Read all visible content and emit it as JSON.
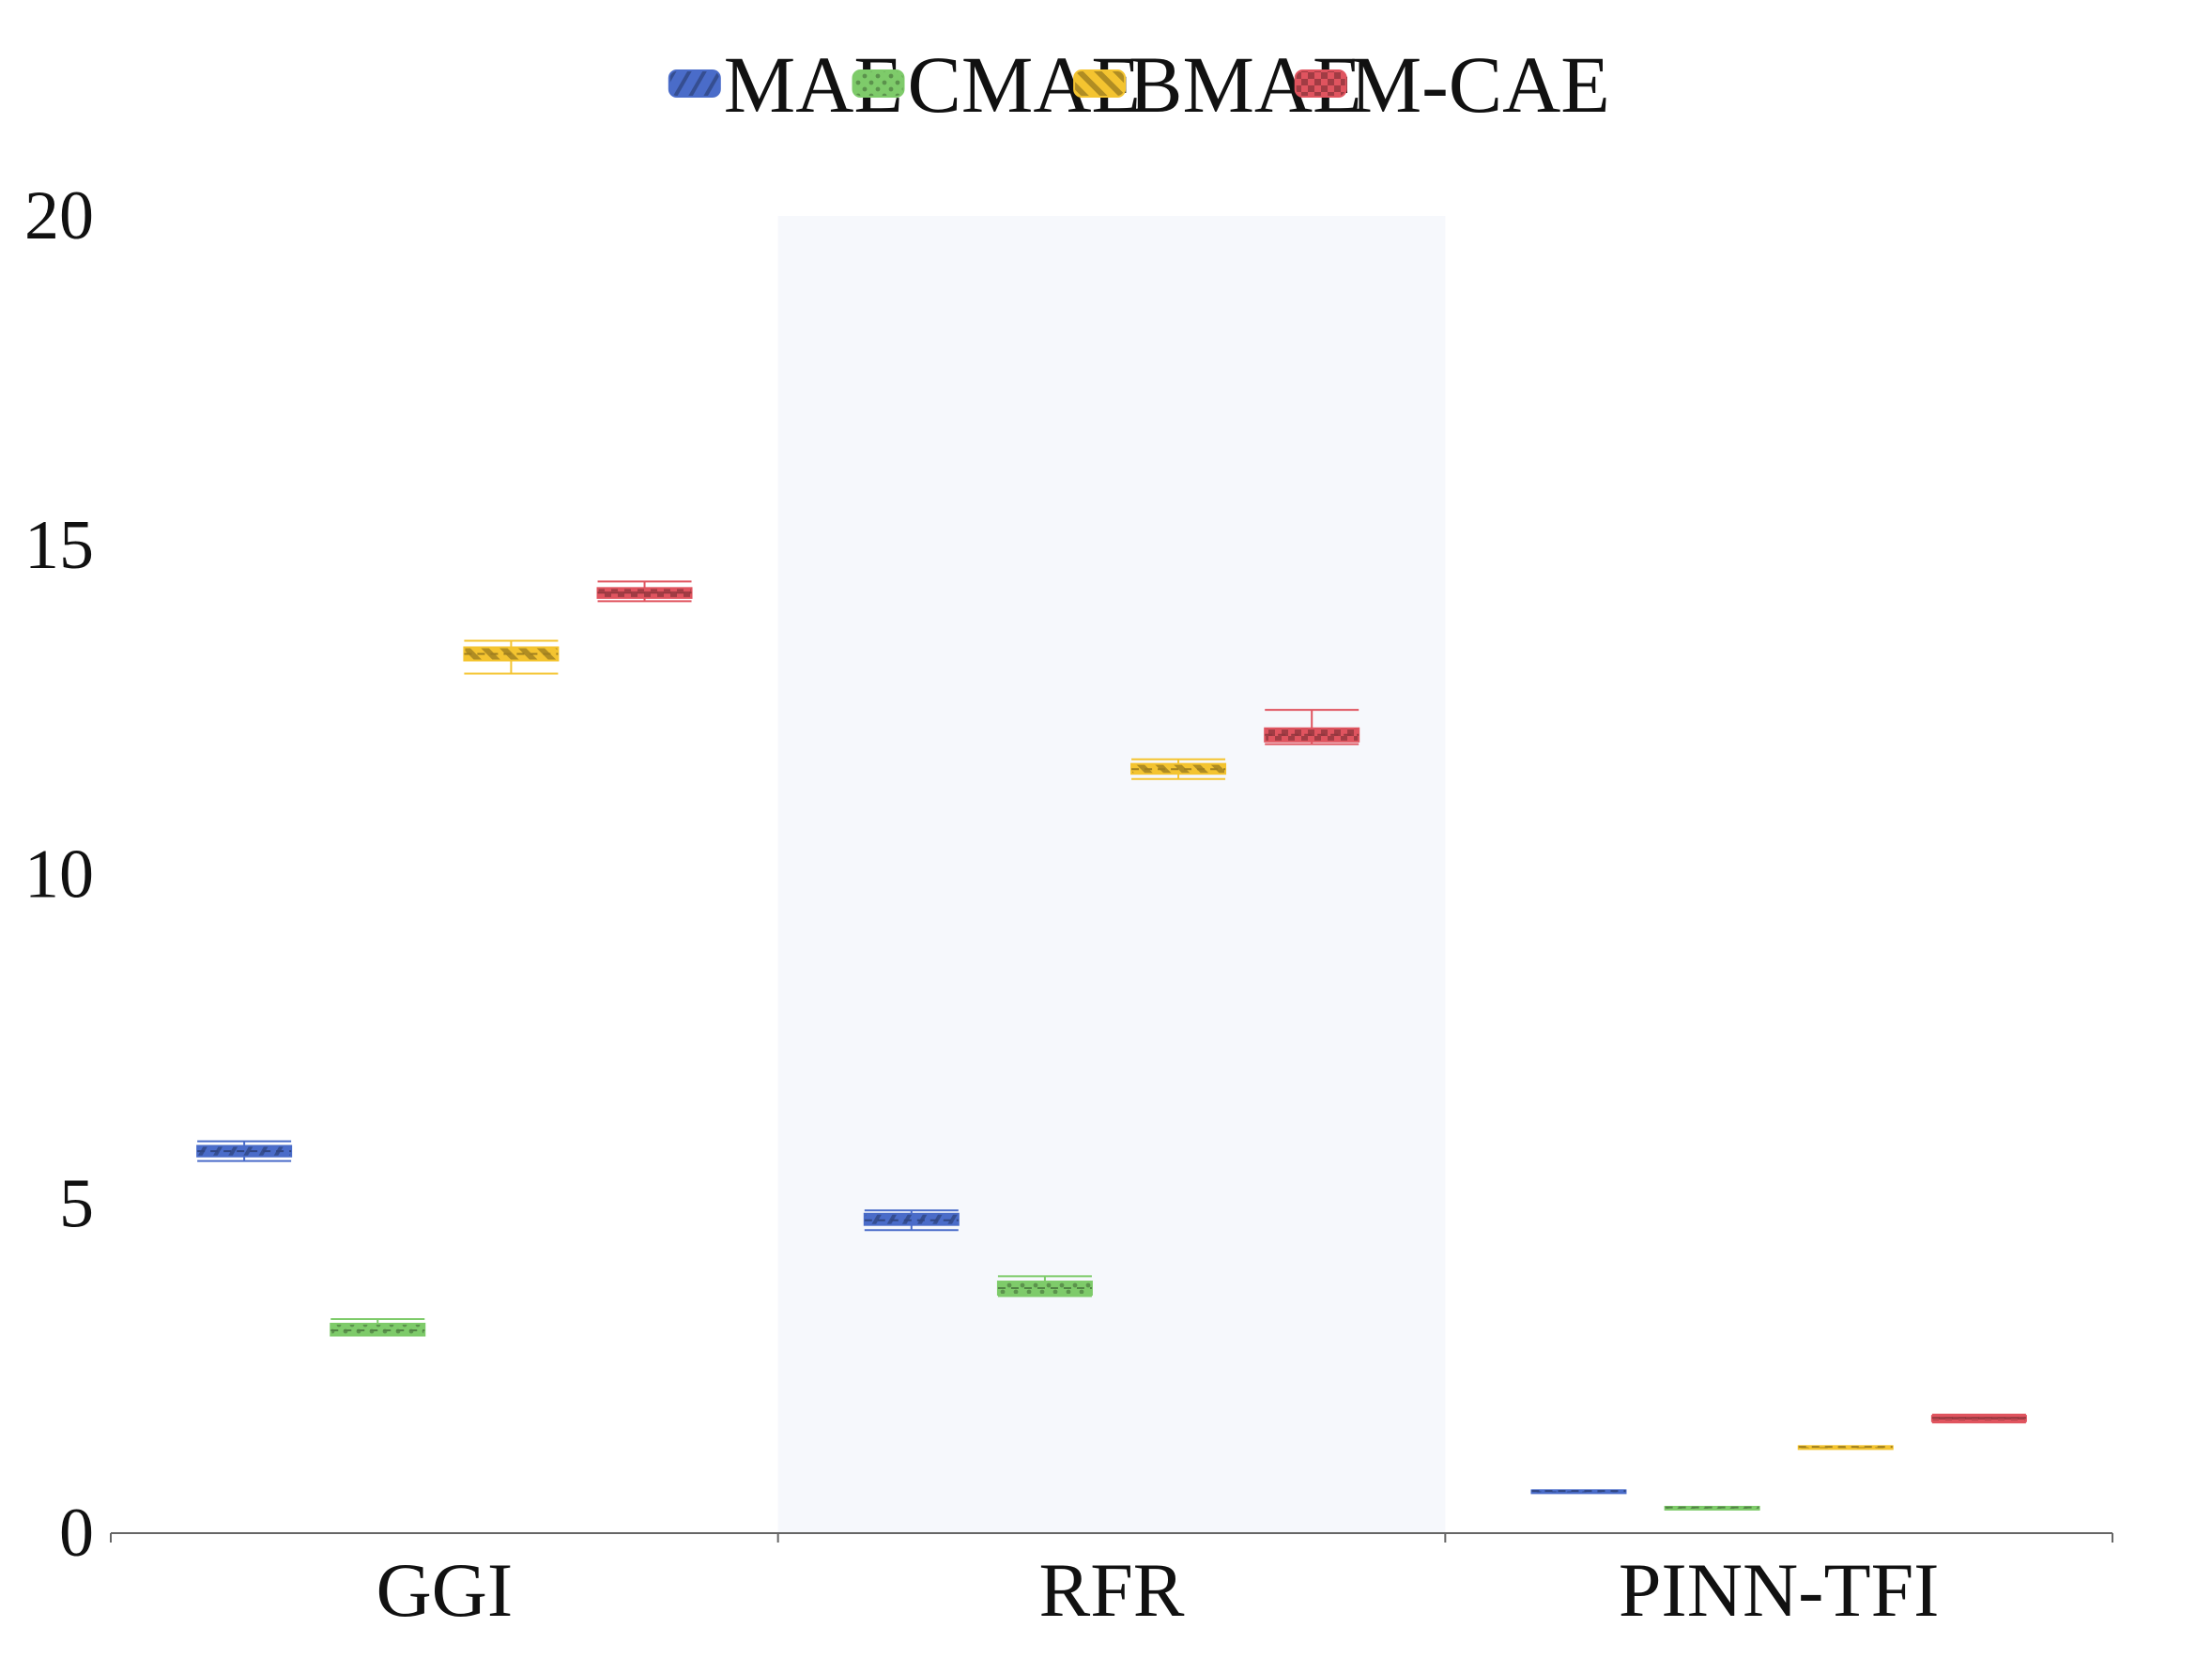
{
  "chart_data": {
    "type": "box",
    "categories": [
      "GGI",
      "RFR",
      "PINN-TFI"
    ],
    "ylim": [
      0,
      20
    ],
    "yticks": [
      "0",
      "5",
      "10",
      "15",
      "20"
    ],
    "legend_position": "top-center",
    "grid": false,
    "series": [
      {
        "name": "MAE",
        "color": "#4a6cc9",
        "pattern": "diagonal-stripes",
        "boxes": [
          {
            "min": 5.65,
            "q1": 5.72,
            "median": 5.8,
            "q3": 5.88,
            "max": 5.95
          },
          {
            "min": 4.6,
            "q1": 4.68,
            "median": 4.75,
            "q3": 4.85,
            "max": 4.9
          },
          {
            "min": 0.63,
            "q1": 0.63,
            "median": 0.64,
            "q3": 0.65,
            "max": 0.65
          }
        ]
      },
      {
        "name": "CMAE",
        "color": "#7ecb6a",
        "pattern": "dots",
        "boxes": [
          {
            "min": 3.0,
            "q1": 3.0,
            "median": 3.08,
            "q3": 3.18,
            "max": 3.25
          },
          {
            "min": 3.6,
            "q1": 3.62,
            "median": 3.72,
            "q3": 3.82,
            "max": 3.9
          },
          {
            "min": 0.38,
            "q1": 0.38,
            "median": 0.39,
            "q3": 0.4,
            "max": 0.4
          }
        ]
      },
      {
        "name": "BMAE",
        "color": "#f4c430",
        "pattern": "thick-stripes",
        "boxes": [
          {
            "min": 13.05,
            "q1": 13.25,
            "median": 13.35,
            "q3": 13.45,
            "max": 13.55
          },
          {
            "min": 11.45,
            "q1": 11.53,
            "median": 11.6,
            "q3": 11.68,
            "max": 11.75
          },
          {
            "min": 1.3,
            "q1": 1.3,
            "median": 1.31,
            "q3": 1.32,
            "max": 1.32
          }
        ]
      },
      {
        "name": "M-CAE",
        "color": "#e0545f",
        "pattern": "checker",
        "boxes": [
          {
            "min": 14.15,
            "q1": 14.2,
            "median": 14.28,
            "q3": 14.35,
            "max": 14.45
          },
          {
            "min": 11.98,
            "q1": 12.02,
            "median": 12.12,
            "q3": 12.22,
            "max": 12.5
          },
          {
            "min": 1.68,
            "q1": 1.7,
            "median": 1.75,
            "q3": 1.78,
            "max": 1.8
          }
        ]
      }
    ]
  }
}
